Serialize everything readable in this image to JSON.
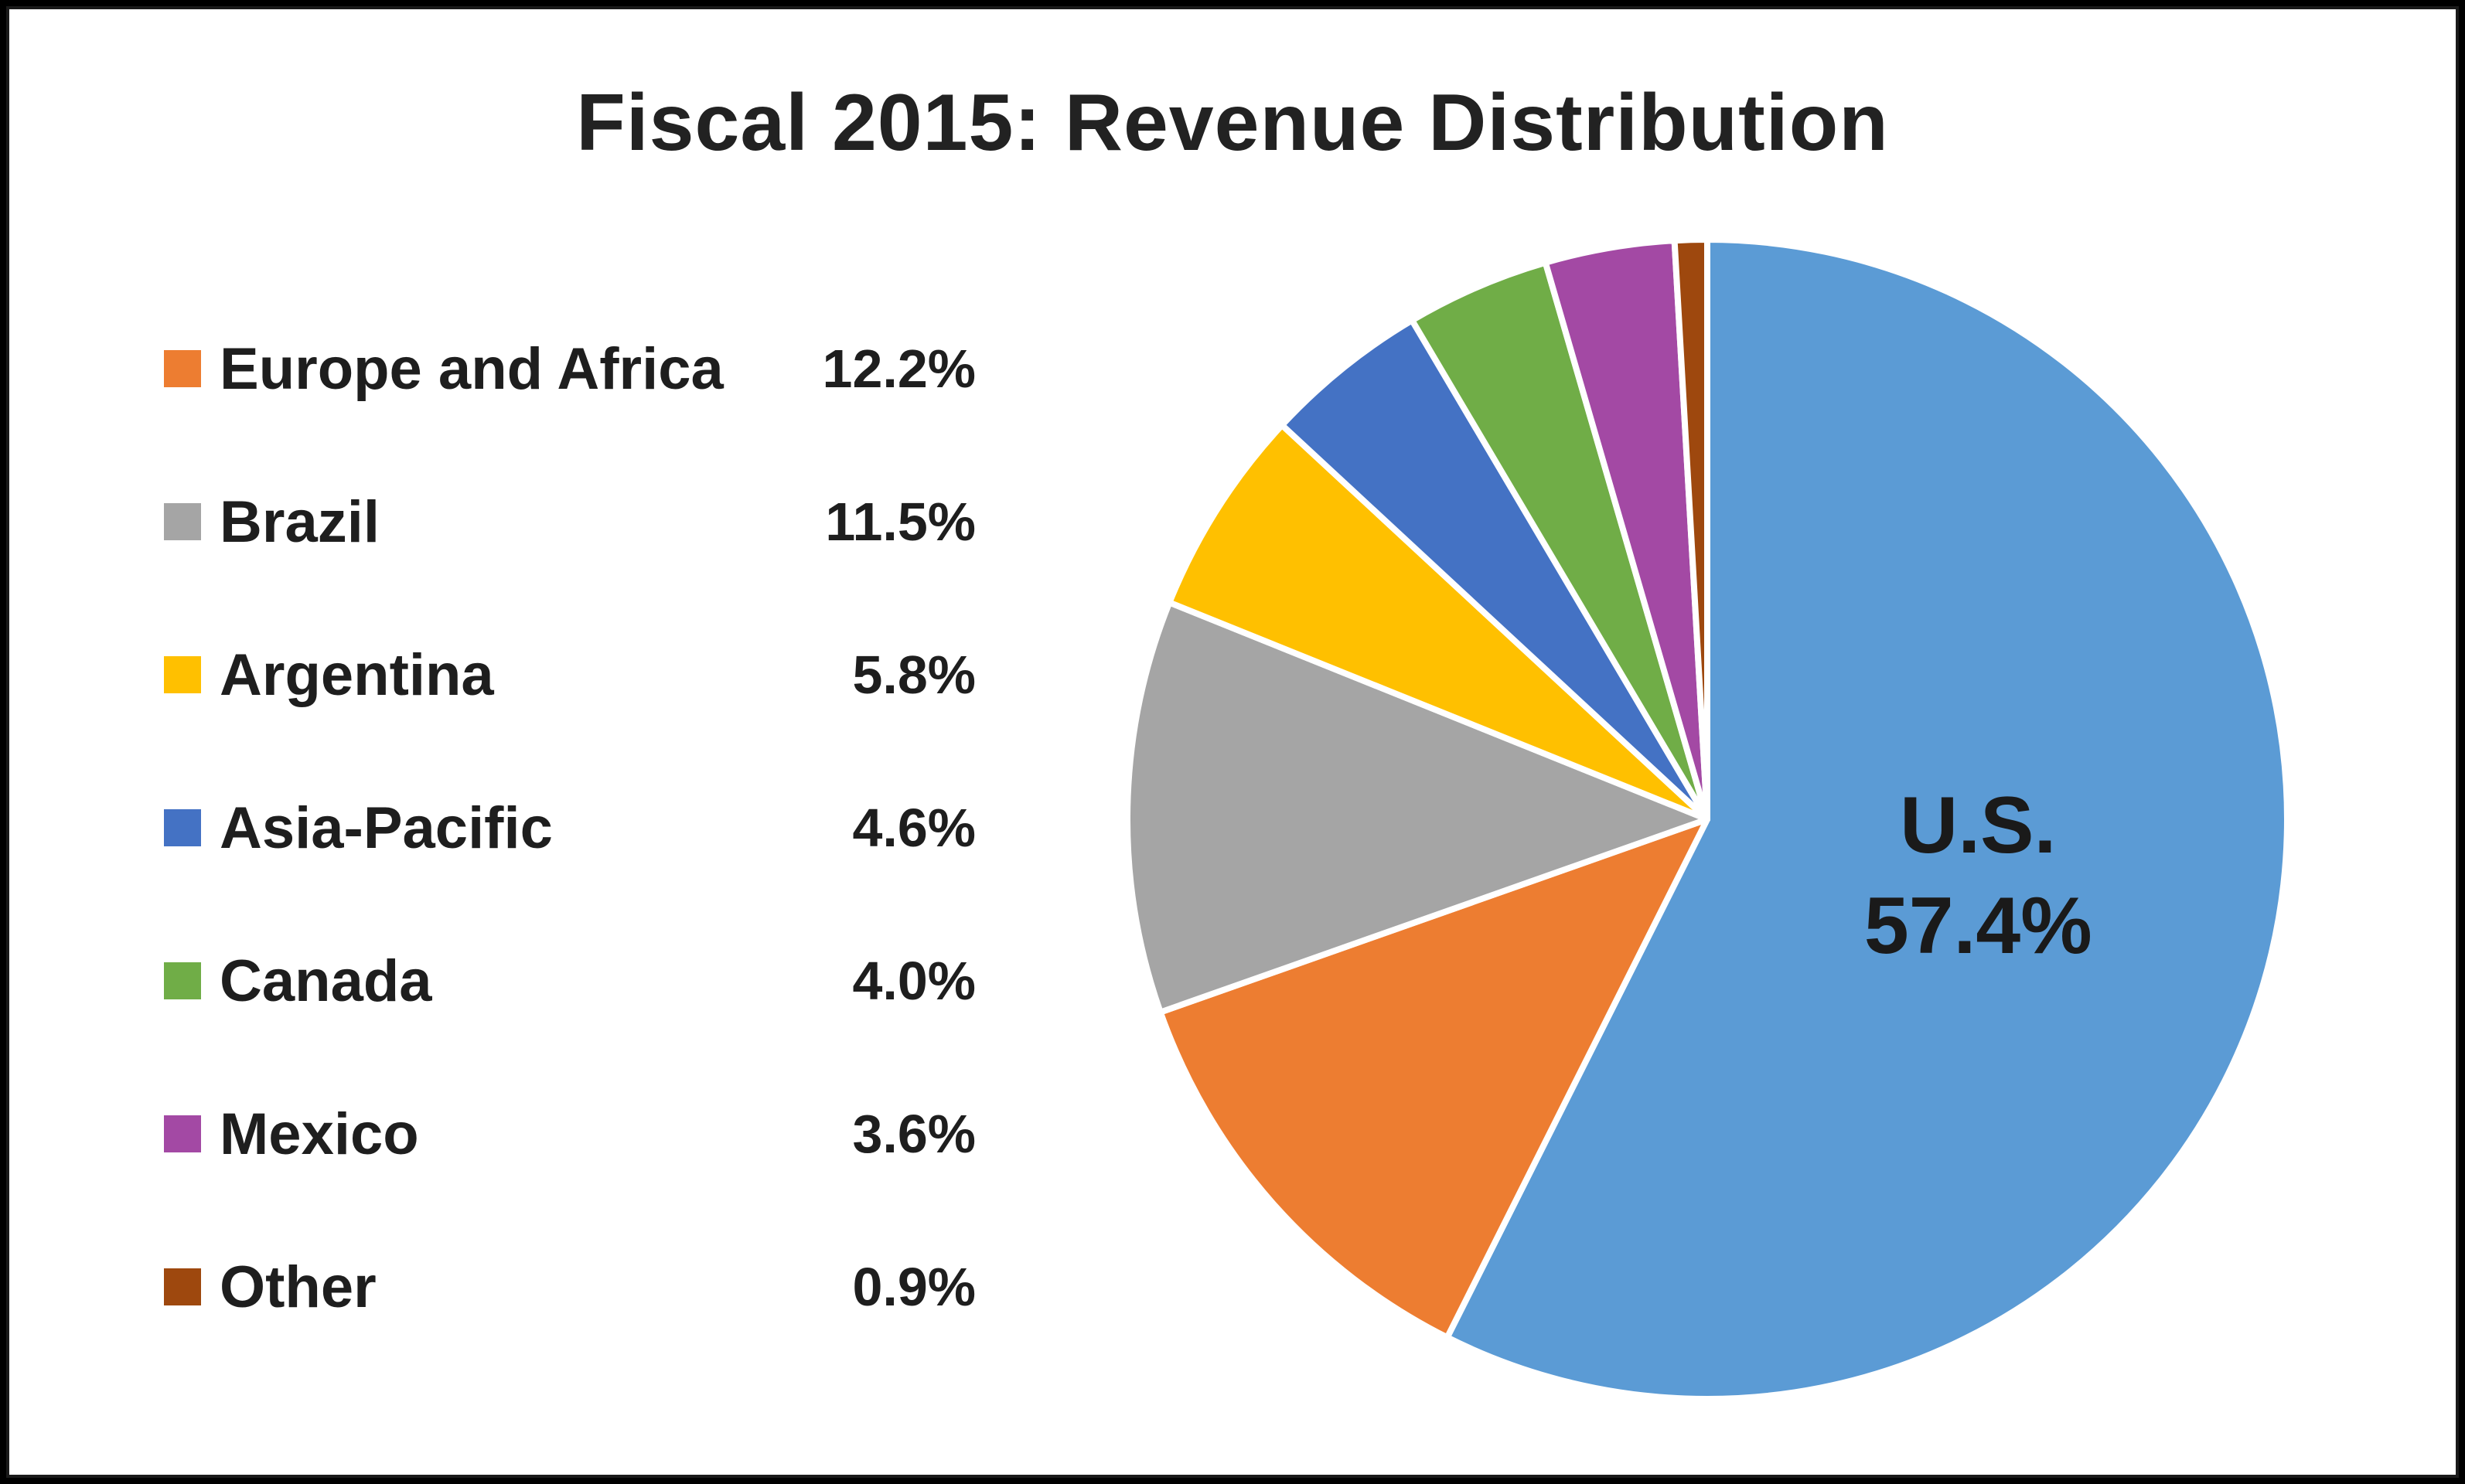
{
  "chart_data": {
    "type": "pie",
    "title": "Fiscal 2015: Revenue Distribution",
    "slices": [
      {
        "label": "U.S.",
        "value": 57.4,
        "display": "57.4%",
        "color": "#5b9bd5",
        "in_legend": false
      },
      {
        "label": "Europe and Africa",
        "value": 12.2,
        "display": "12.2%",
        "color": "#ed7d31",
        "in_legend": true
      },
      {
        "label": "Brazil",
        "value": 11.5,
        "display": "11.5%",
        "color": "#a5a5a5",
        "in_legend": true
      },
      {
        "label": "Argentina",
        "value": 5.8,
        "display": "5.8%",
        "color": "#ffc000",
        "in_legend": true
      },
      {
        "label": "Asia-Pacific",
        "value": 4.6,
        "display": "4.6%",
        "color": "#4472c4",
        "in_legend": true
      },
      {
        "label": "Canada",
        "value": 4.0,
        "display": "4.0%",
        "color": "#70ad47",
        "in_legend": true
      },
      {
        "label": "Mexico",
        "value": 3.6,
        "display": "3.6%",
        "color": "#a349a4",
        "in_legend": true
      },
      {
        "label": "Other",
        "value": 0.9,
        "display": "0.9%",
        "color": "#9e480e",
        "in_legend": true
      }
    ],
    "direction": "clockwise",
    "start": "top"
  }
}
